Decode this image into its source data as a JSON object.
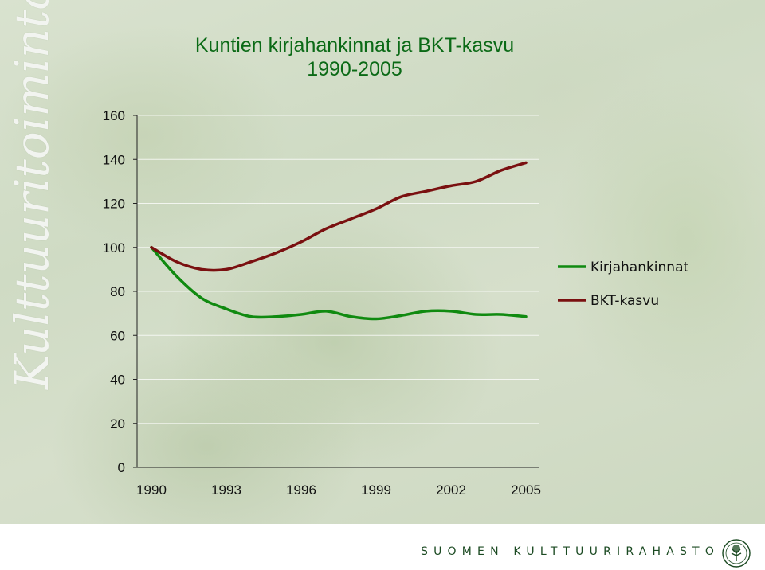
{
  "slide": {
    "side_title": "Kulttuuritoiminta",
    "footer_text": "SUOMEN KULTTUURIRAHASTO"
  },
  "chart_data": {
    "type": "line",
    "title": [
      "Kuntien kirjahankinnat ja BKT-kasvu",
      "1990-2005"
    ],
    "xlabel": "",
    "ylabel": "",
    "x": [
      1990,
      1991,
      1992,
      1993,
      1994,
      1995,
      1996,
      1997,
      1998,
      1999,
      2000,
      2001,
      2002,
      2003,
      2004,
      2005
    ],
    "x_ticks": [
      "1990",
      "1993",
      "1996",
      "1999",
      "2002",
      "2005"
    ],
    "y_ticks": [
      "0",
      "20",
      "40",
      "60",
      "80",
      "100",
      "120",
      "140",
      "160"
    ],
    "ylim": [
      0,
      160
    ],
    "grid": true,
    "legend_position": "right",
    "series": [
      {
        "name": "Kirjahankinnat",
        "color": "#108a10",
        "values": [
          100,
          87,
          77,
          72,
          68.5,
          68.5,
          69.5,
          71,
          68.5,
          67.5,
          69,
          71,
          71,
          69.5,
          69.5,
          68.5
        ]
      },
      {
        "name": "BKT-kasvu",
        "color": "#7a1010",
        "values": [
          100,
          93.5,
          90,
          90,
          93.5,
          97.5,
          102.5,
          108.5,
          113,
          117.5,
          123,
          125.5,
          128,
          130,
          135,
          138.5
        ]
      }
    ]
  }
}
